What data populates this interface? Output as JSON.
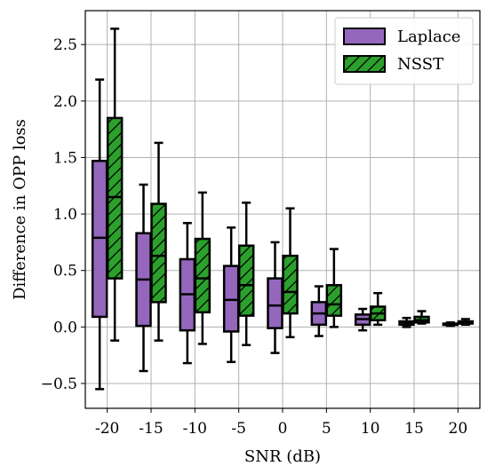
{
  "chart_data": {
    "type": "box",
    "xlabel": "SNR (dB)",
    "ylabel": "Difference in OPP loss",
    "categories": [
      "-20",
      "-15",
      "-10",
      "-5",
      "0",
      "5",
      "10",
      "15",
      "20"
    ],
    "ylim": [
      -0.72,
      2.8
    ],
    "yticks": [
      -0.5,
      0.0,
      0.5,
      1.0,
      1.5,
      2.0,
      2.5
    ],
    "ytick_labels": [
      "−0.5",
      "0.0",
      "0.5",
      "1.0",
      "1.5",
      "2.0",
      "2.5"
    ],
    "grid": true,
    "legend_position": "top-right",
    "series": [
      {
        "name": "Laplace",
        "color": "#9467bd",
        "hatch": false,
        "boxes": [
          {
            "min": -0.55,
            "q1": 0.09,
            "median": 0.79,
            "q3": 1.47,
            "max": 2.19
          },
          {
            "min": -0.39,
            "q1": 0.01,
            "median": 0.42,
            "q3": 0.83,
            "max": 1.26
          },
          {
            "min": -0.32,
            "q1": -0.03,
            "median": 0.29,
            "q3": 0.6,
            "max": 0.92
          },
          {
            "min": -0.31,
            "q1": -0.04,
            "median": 0.24,
            "q3": 0.54,
            "max": 0.88
          },
          {
            "min": -0.23,
            "q1": -0.01,
            "median": 0.19,
            "q3": 0.43,
            "max": 0.75
          },
          {
            "min": -0.08,
            "q1": 0.02,
            "median": 0.12,
            "q3": 0.22,
            "max": 0.36
          },
          {
            "min": -0.03,
            "q1": 0.02,
            "median": 0.07,
            "q3": 0.11,
            "max": 0.16
          },
          {
            "min": 0.0,
            "q1": 0.02,
            "median": 0.04,
            "q3": 0.05,
            "max": 0.08
          },
          {
            "min": 0.01,
            "q1": 0.02,
            "median": 0.02,
            "q3": 0.03,
            "max": 0.04
          }
        ]
      },
      {
        "name": "NSST",
        "color": "#2ca02c",
        "hatch": true,
        "boxes": [
          {
            "min": -0.12,
            "q1": 0.43,
            "median": 1.15,
            "q3": 1.85,
            "max": 2.64
          },
          {
            "min": -0.12,
            "q1": 0.22,
            "median": 0.63,
            "q3": 1.09,
            "max": 1.63
          },
          {
            "min": -0.15,
            "q1": 0.13,
            "median": 0.43,
            "q3": 0.78,
            "max": 1.19
          },
          {
            "min": -0.16,
            "q1": 0.1,
            "median": 0.37,
            "q3": 0.72,
            "max": 1.1
          },
          {
            "min": -0.09,
            "q1": 0.12,
            "median": 0.31,
            "q3": 0.63,
            "max": 1.05
          },
          {
            "min": 0.0,
            "q1": 0.1,
            "median": 0.2,
            "q3": 0.37,
            "max": 0.69
          },
          {
            "min": 0.02,
            "q1": 0.06,
            "median": 0.12,
            "q3": 0.18,
            "max": 0.3
          },
          {
            "min": 0.03,
            "q1": 0.04,
            "median": 0.06,
            "q3": 0.09,
            "max": 0.14
          },
          {
            "min": 0.02,
            "q1": 0.03,
            "median": 0.04,
            "q3": 0.05,
            "max": 0.07
          }
        ]
      }
    ]
  }
}
